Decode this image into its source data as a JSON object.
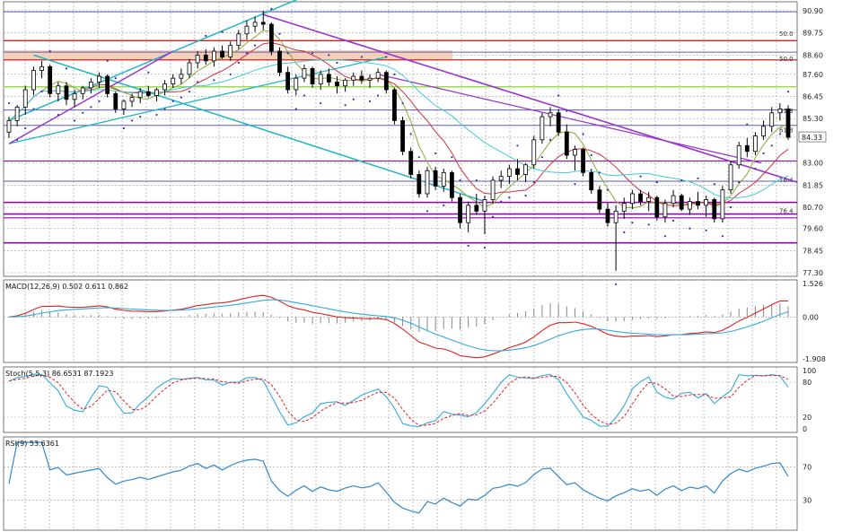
{
  "chart_data": [
    {
      "type": "candlestick",
      "pane": "price",
      "y_ticks": [
        "90.90",
        "89.75",
        "88.60",
        "87.60",
        "86.45",
        "85.30",
        "84.33",
        "83.00",
        "81.85",
        "80.70",
        "79.60",
        "78.45",
        "77.30"
      ],
      "ylim": [
        77.3,
        90.9
      ],
      "last_price_label": "84.33",
      "fib_labels": [
        "50.0",
        "50.0",
        "61.8",
        "61.8",
        "76.4",
        "76.4"
      ],
      "grid": true,
      "candles_ohlc": [
        [
          84.6,
          85.4,
          84.3,
          85.2
        ],
        [
          85.2,
          86.0,
          84.9,
          85.9
        ],
        [
          85.9,
          87.0,
          85.5,
          86.8
        ],
        [
          86.8,
          88.0,
          86.5,
          87.8
        ],
        [
          87.8,
          88.3,
          87.4,
          88.0
        ],
        [
          88.0,
          88.1,
          86.4,
          86.6
        ],
        [
          86.6,
          87.2,
          86.2,
          87.0
        ],
        [
          87.0,
          87.2,
          86.0,
          86.3
        ],
        [
          86.3,
          86.8,
          85.9,
          86.6
        ],
        [
          86.6,
          87.0,
          86.3,
          86.9
        ],
        [
          86.9,
          87.4,
          86.6,
          87.2
        ],
        [
          87.2,
          87.7,
          86.9,
          87.5
        ],
        [
          87.5,
          87.6,
          86.4,
          86.6
        ],
        [
          86.6,
          86.7,
          85.6,
          85.8
        ],
        [
          85.8,
          86.3,
          85.5,
          86.2
        ],
        [
          86.2,
          86.6,
          85.9,
          86.4
        ],
        [
          86.4,
          86.9,
          86.1,
          86.7
        ],
        [
          86.7,
          87.0,
          86.4,
          86.5
        ],
        [
          86.5,
          86.9,
          86.2,
          86.8
        ],
        [
          86.8,
          87.3,
          86.5,
          87.1
        ],
        [
          87.1,
          87.6,
          86.9,
          87.4
        ],
        [
          87.4,
          87.9,
          87.1,
          87.6
        ],
        [
          87.6,
          88.4,
          87.4,
          88.2
        ],
        [
          88.2,
          88.8,
          87.9,
          88.6
        ],
        [
          88.6,
          88.9,
          88.1,
          88.3
        ],
        [
          88.3,
          89.0,
          88.0,
          88.8
        ],
        [
          88.8,
          89.1,
          88.4,
          88.5
        ],
        [
          88.5,
          89.3,
          88.3,
          89.1
        ],
        [
          89.1,
          89.9,
          88.9,
          89.7
        ],
        [
          89.7,
          90.4,
          89.4,
          90.1
        ],
        [
          90.1,
          90.6,
          89.8,
          90.3
        ],
        [
          90.3,
          90.9,
          89.9,
          90.2
        ],
        [
          90.2,
          90.3,
          88.6,
          88.8
        ],
        [
          88.8,
          89.0,
          87.5,
          87.7
        ],
        [
          87.7,
          88.0,
          86.6,
          86.8
        ],
        [
          86.8,
          87.6,
          86.5,
          87.4
        ],
        [
          87.4,
          88.1,
          87.2,
          87.9
        ],
        [
          87.9,
          88.0,
          86.9,
          87.1
        ],
        [
          87.1,
          87.8,
          86.8,
          87.6
        ],
        [
          87.6,
          87.9,
          87.0,
          87.2
        ],
        [
          87.2,
          87.5,
          86.6,
          87.0
        ],
        [
          87.0,
          87.4,
          86.7,
          87.3
        ],
        [
          87.3,
          87.7,
          87.0,
          87.5
        ],
        [
          87.5,
          87.8,
          87.1,
          87.3
        ],
        [
          87.3,
          87.6,
          86.9,
          87.4
        ],
        [
          87.4,
          87.9,
          87.2,
          87.7
        ],
        [
          87.7,
          87.8,
          86.6,
          86.8
        ],
        [
          86.8,
          86.9,
          85.0,
          85.2
        ],
        [
          85.2,
          85.4,
          83.4,
          83.6
        ],
        [
          83.6,
          83.8,
          82.2,
          82.4
        ],
        [
          82.4,
          82.6,
          81.2,
          81.4
        ],
        [
          81.4,
          82.8,
          81.2,
          82.6
        ],
        [
          82.6,
          82.8,
          81.6,
          81.8
        ],
        [
          81.8,
          82.7,
          81.5,
          82.5
        ],
        [
          82.5,
          82.6,
          81.0,
          81.2
        ],
        [
          81.2,
          81.4,
          79.6,
          79.9
        ],
        [
          79.9,
          81.0,
          79.4,
          80.8
        ],
        [
          80.8,
          81.4,
          80.3,
          80.5
        ],
        [
          80.5,
          81.3,
          79.3,
          81.1
        ],
        [
          81.1,
          82.3,
          80.9,
          82.1
        ],
        [
          82.1,
          82.6,
          81.7,
          82.3
        ],
        [
          82.3,
          82.9,
          81.9,
          82.7
        ],
        [
          82.7,
          83.2,
          82.1,
          82.4
        ],
        [
          82.4,
          83.0,
          82.0,
          82.9
        ],
        [
          82.9,
          84.4,
          82.7,
          84.2
        ],
        [
          84.2,
          85.6,
          84.0,
          85.4
        ],
        [
          85.4,
          85.9,
          84.9,
          85.6
        ],
        [
          85.6,
          85.8,
          84.4,
          84.6
        ],
        [
          84.6,
          85.0,
          83.2,
          83.4
        ],
        [
          83.4,
          83.9,
          82.6,
          83.7
        ],
        [
          83.7,
          83.8,
          82.3,
          82.5
        ],
        [
          82.5,
          82.7,
          81.4,
          81.6
        ],
        [
          81.6,
          81.8,
          80.4,
          80.6
        ],
        [
          80.6,
          80.9,
          79.7,
          79.9
        ],
        [
          79.9,
          80.8,
          77.4,
          80.5
        ],
        [
          80.5,
          81.2,
          80.1,
          80.9
        ],
        [
          80.9,
          81.6,
          80.6,
          81.4
        ],
        [
          81.4,
          81.6,
          80.8,
          81.0
        ],
        [
          81.0,
          81.5,
          80.5,
          81.2
        ],
        [
          81.2,
          81.3,
          80.0,
          80.2
        ],
        [
          80.2,
          81.1,
          79.9,
          80.9
        ],
        [
          80.9,
          81.6,
          80.7,
          81.3
        ],
        [
          81.3,
          81.4,
          80.5,
          80.6
        ],
        [
          80.6,
          81.2,
          80.3,
          81.0
        ],
        [
          81.0,
          81.5,
          80.6,
          80.8
        ],
        [
          80.8,
          81.3,
          80.2,
          81.1
        ],
        [
          81.1,
          81.2,
          79.9,
          80.1
        ],
        [
          80.1,
          81.8,
          79.9,
          81.6
        ],
        [
          81.6,
          83.1,
          81.4,
          82.9
        ],
        [
          82.9,
          84.1,
          82.7,
          83.9
        ],
        [
          83.9,
          84.3,
          83.3,
          83.6
        ],
        [
          83.6,
          84.6,
          83.4,
          84.4
        ],
        [
          84.4,
          85.2,
          84.2,
          84.9
        ],
        [
          84.9,
          85.9,
          84.6,
          85.6
        ],
        [
          85.6,
          86.1,
          85.2,
          85.8
        ],
        [
          85.8,
          86.0,
          84.2,
          84.33
        ]
      ]
    },
    {
      "type": "macd",
      "pane": "macd",
      "title": "MACD(12,26,9) 0.502 0.611 0.862",
      "y_ticks": [
        "1.526",
        "0.00",
        "-1.908"
      ],
      "ylim": [
        -1.908,
        1.526
      ]
    },
    {
      "type": "stochastic",
      "pane": "stoch",
      "title": "Stoch(5,5,3) 86.6531 87.1923",
      "y_ticks": [
        "100",
        "80",
        "20",
        "0"
      ],
      "ylim": [
        0,
        100
      ]
    },
    {
      "type": "rsi",
      "pane": "rsi",
      "title": "RSI(9) 53.6361",
      "y_ticks": [
        "70",
        "30"
      ],
      "ylim": [
        0,
        100
      ]
    }
  ],
  "colors": {
    "background": "#ffffff",
    "grid": "#9a9a9a",
    "candle_bull": "#ffffff",
    "candle_bear": "#000000",
    "candle_outline": "#000000",
    "trend_purple": "#9933cc",
    "trend_cyan": "#22b5c8",
    "hline_blue": "#5b5bb8",
    "hline_red": "#cc2222",
    "hline_green": "#99dd55",
    "hline_purple": "#9900bb",
    "fib_zone": "#f4c4a8",
    "ma_fast": "#cc3344",
    "ma_slow": "#88aa33",
    "ma_cyan": "#44ccdd",
    "psar": "#3333aa",
    "macd_main": "#dd2222",
    "macd_signal": "#33aadd",
    "macd_hist": "#888888",
    "stoch_main": "#33aadd",
    "stoch_signal": "#dd2222",
    "rsi_line": "#3388cc"
  }
}
